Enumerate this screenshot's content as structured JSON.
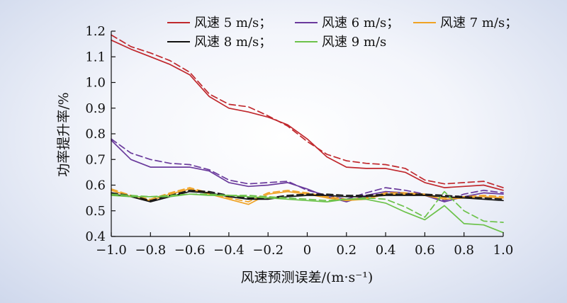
{
  "chart_data": {
    "type": "line",
    "title": "",
    "xlabel": "风速预测误差/(m·s⁻¹)",
    "ylabel": "功率提升率/%",
    "xlim": [
      -1.0,
      1.0
    ],
    "ylim": [
      0.4,
      1.2
    ],
    "xticks": [
      -1.0,
      -0.8,
      -0.6,
      -0.4,
      -0.2,
      0,
      0.2,
      0.4,
      0.6,
      0.8,
      1.0
    ],
    "xtick_labels": [
      "−1.0",
      "−0.8",
      "−0.6",
      "−0.4",
      "−0.2",
      "0",
      "0.2",
      "0.4",
      "0.6",
      "0.8",
      "1.0"
    ],
    "yticks": [
      0.4,
      0.5,
      0.6,
      0.7,
      0.8,
      0.9,
      1.0,
      1.1,
      1.2
    ],
    "ytick_labels": [
      "0.4",
      "0.5",
      "0.6",
      "0.7",
      "0.8",
      "0.9",
      "1.0",
      "1.1",
      "1.2"
    ],
    "grid": false,
    "legend_position": "top",
    "x": [
      -1.0,
      -0.9,
      -0.8,
      -0.7,
      -0.6,
      -0.5,
      -0.4,
      -0.3,
      -0.2,
      -0.1,
      0.0,
      0.1,
      0.2,
      0.3,
      0.4,
      0.5,
      0.6,
      0.7,
      0.8,
      0.9,
      1.0
    ],
    "series": [
      {
        "name": "风速 5 m/s；",
        "color": "#c0282d",
        "solid": [
          1.165,
          1.13,
          1.1,
          1.07,
          1.03,
          0.945,
          0.9,
          0.885,
          0.865,
          0.835,
          0.78,
          0.71,
          0.67,
          0.665,
          0.665,
          0.65,
          0.61,
          0.59,
          0.595,
          0.6,
          0.58
        ],
        "dashed": [
          1.185,
          1.14,
          1.115,
          1.085,
          1.04,
          0.955,
          0.915,
          0.905,
          0.87,
          0.83,
          0.77,
          0.72,
          0.695,
          0.685,
          0.68,
          0.665,
          0.62,
          0.605,
          0.61,
          0.615,
          0.59
        ]
      },
      {
        "name": "风速 6 m/s；",
        "color": "#6a3a9c",
        "solid": [
          0.775,
          0.7,
          0.67,
          0.67,
          0.67,
          0.655,
          0.61,
          0.595,
          0.6,
          0.61,
          0.585,
          0.555,
          0.535,
          0.56,
          0.575,
          0.57,
          0.56,
          0.535,
          0.555,
          0.57,
          0.565
        ],
        "dashed": [
          0.78,
          0.725,
          0.7,
          0.685,
          0.68,
          0.66,
          0.62,
          0.605,
          0.61,
          0.615,
          0.58,
          0.56,
          0.545,
          0.57,
          0.59,
          0.58,
          0.565,
          0.54,
          0.565,
          0.58,
          0.57
        ]
      },
      {
        "name": "风速 7 m/s；",
        "color": "#f0a324",
        "solid": [
          0.58,
          0.555,
          0.54,
          0.565,
          0.585,
          0.565,
          0.545,
          0.525,
          0.565,
          0.575,
          0.565,
          0.55,
          0.54,
          0.545,
          0.565,
          0.565,
          0.56,
          0.545,
          0.55,
          0.555,
          0.55
        ],
        "dashed": [
          0.585,
          0.56,
          0.545,
          0.57,
          0.59,
          0.57,
          0.55,
          0.535,
          0.57,
          0.58,
          0.57,
          0.555,
          0.545,
          0.55,
          0.57,
          0.57,
          0.565,
          0.55,
          0.555,
          0.56,
          0.555
        ]
      },
      {
        "name": "风速 8 m/s；",
        "color": "#111111",
        "solid": [
          0.565,
          0.555,
          0.535,
          0.555,
          0.575,
          0.57,
          0.555,
          0.545,
          0.545,
          0.555,
          0.56,
          0.56,
          0.555,
          0.555,
          0.56,
          0.56,
          0.56,
          0.555,
          0.55,
          0.545,
          0.54
        ],
        "dashed": [
          0.57,
          0.56,
          0.54,
          0.56,
          0.58,
          0.575,
          0.56,
          0.55,
          0.55,
          0.56,
          0.565,
          0.565,
          0.56,
          0.56,
          0.565,
          0.565,
          0.565,
          0.56,
          0.555,
          0.55,
          0.545
        ]
      },
      {
        "name": "风速 9 m/s",
        "color": "#6cc24a",
        "solid": [
          0.56,
          0.555,
          0.555,
          0.555,
          0.565,
          0.56,
          0.56,
          0.555,
          0.55,
          0.545,
          0.54,
          0.535,
          0.545,
          0.545,
          0.53,
          0.495,
          0.465,
          0.52,
          0.45,
          0.445,
          0.415
        ],
        "dashed": [
          0.565,
          0.56,
          0.555,
          0.56,
          0.565,
          0.565,
          0.56,
          0.56,
          0.555,
          0.55,
          0.545,
          0.54,
          0.545,
          0.55,
          0.545,
          0.515,
          0.475,
          0.575,
          0.5,
          0.46,
          0.455
        ]
      }
    ]
  }
}
